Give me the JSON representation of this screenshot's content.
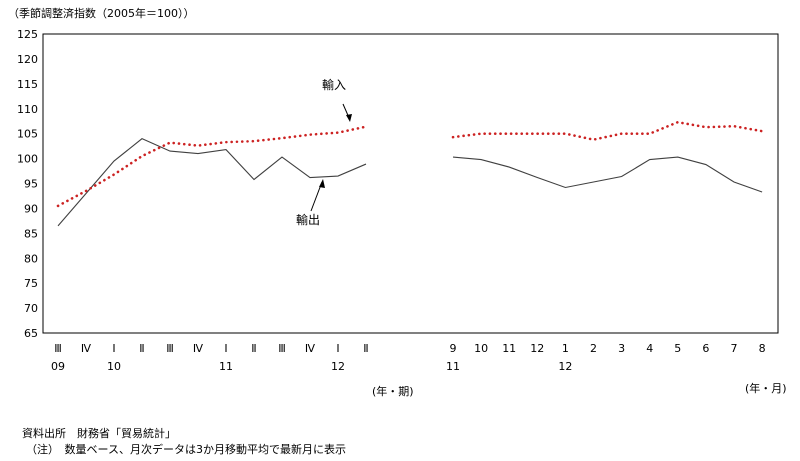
{
  "chart_data": {
    "type": "line",
    "unit_label": "（季節調整済指数（2005年＝100））",
    "ylim": [
      65,
      125
    ],
    "yticks": [
      65,
      70,
      75,
      80,
      85,
      90,
      95,
      100,
      105,
      110,
      115,
      120,
      125
    ],
    "grid": false,
    "colors": {
      "exports": "#404040",
      "imports": "#cc2222"
    },
    "panels": [
      {
        "x_unit": "(年・期)",
        "categories": [
          "Ⅲ",
          "Ⅳ",
          "Ⅰ",
          "Ⅱ",
          "Ⅲ",
          "Ⅳ",
          "Ⅰ",
          "Ⅱ",
          "Ⅲ",
          "Ⅳ",
          "Ⅰ",
          "Ⅱ"
        ],
        "years": [
          "09",
          "",
          "10",
          "",
          "",
          "",
          "11",
          "",
          "",
          "",
          "12",
          ""
        ],
        "series": [
          {
            "name": "輸出",
            "values": [
              86.5,
              93,
              99.5,
              104,
              101.5,
              101,
              101.8,
              95.8,
              100.3,
              96.2,
              96.5,
              98.9
            ]
          },
          {
            "name": "輸入",
            "values": [
              90.5,
              93.5,
              96.8,
              100.5,
              103.2,
              102.6,
              103.3,
              103.5,
              104.1,
              104.8,
              105.2,
              106.4
            ]
          }
        ]
      },
      {
        "x_unit": "(年・月)",
        "categories": [
          "9",
          "10",
          "11",
          "12",
          "1",
          "2",
          "3",
          "4",
          "5",
          "6",
          "7",
          "8"
        ],
        "years": [
          "11",
          "",
          "",
          "",
          "12",
          "",
          "",
          "",
          "",
          "",
          "",
          ""
        ],
        "series": [
          {
            "name": "輸出",
            "values": [
              100.3,
              99.8,
              98.3,
              96.2,
              94.2,
              95.3,
              96.4,
              99.8,
              100.3,
              98.8,
              95.3,
              93.3
            ]
          },
          {
            "name": "輸入",
            "values": [
              104.3,
              105,
              105,
              105,
              105,
              103.8,
              105,
              105,
              107.3,
              106.3,
              106.5,
              105.5
            ]
          }
        ]
      }
    ],
    "annotations": {
      "imports": "輸入",
      "exports": "輸出"
    }
  },
  "notes": {
    "source": "資料出所　財務省「貿易統計」",
    "note": "（注）　数量ベース、月次データは3か月移動平均で最新月に表示"
  }
}
